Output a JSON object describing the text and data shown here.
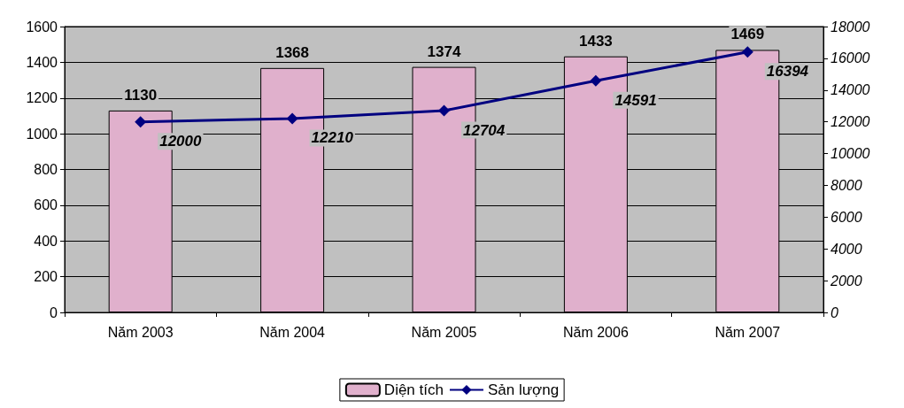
{
  "chart_data": {
    "type": "bar",
    "categories": [
      "Năm 2003",
      "Năm 2004",
      "Năm 2005",
      "Năm 2006",
      "Năm 2007"
    ],
    "series": [
      {
        "name": "Diện tích",
        "color": "#e0b0cc",
        "values": [
          1130,
          1368,
          1374,
          1433,
          1469
        ]
      },
      {
        "name": "Sản lượng",
        "type": "line",
        "axis": "y2",
        "color": "#000080",
        "values": [
          12000,
          12210,
          12704,
          14591,
          16394
        ]
      }
    ],
    "ylim": [
      0,
      1600
    ],
    "yticks": [
      0,
      200,
      400,
      600,
      800,
      1000,
      1200,
      1400,
      1600
    ],
    "y2lim": [
      0,
      18000
    ],
    "y2ticks": [
      0,
      2000,
      4000,
      6000,
      8000,
      10000,
      12000,
      14000,
      16000,
      18000
    ],
    "grid": "y",
    "legend": "bottom",
    "marker": "diamond",
    "data_labels": true
  }
}
